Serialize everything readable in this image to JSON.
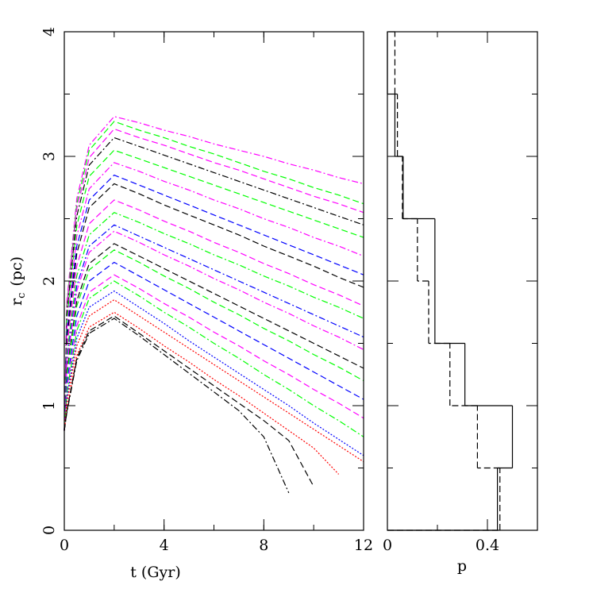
{
  "chart_data": [
    {
      "type": "line",
      "x_label": "t (Gyr)",
      "y_label": {
        "main": "r",
        "subscript": "c",
        "unit": "(pc)"
      },
      "xlim": [
        0,
        12
      ],
      "xticks": [
        0,
        4,
        8,
        12
      ],
      "ylim": [
        0,
        4
      ],
      "yticks": [
        0,
        1,
        2,
        3,
        4
      ],
      "x": [
        0,
        0.1,
        0.5,
        1,
        2,
        3,
        4,
        5,
        6,
        7,
        8,
        9,
        10,
        11,
        12
      ],
      "series": [
        {
          "color": "#ff00ff",
          "style": "dashdot",
          "values": [
            0.8,
            1.83,
            2.66,
            3.09,
            3.32,
            3.27,
            3.21,
            3.16,
            3.1,
            3.05,
            3.0,
            2.94,
            2.89,
            2.83,
            2.78
          ]
        },
        {
          "color": "#00ff00",
          "style": "dashed",
          "values": [
            0.8,
            1.8,
            2.62,
            3.05,
            3.28,
            3.21,
            3.15,
            3.08,
            3.02,
            2.95,
            2.88,
            2.82,
            2.75,
            2.69,
            2.62
          ]
        },
        {
          "color": "#ff00ff",
          "style": "dashed",
          "values": [
            0.8,
            1.77,
            2.58,
            2.99,
            3.22,
            3.15,
            3.09,
            3.02,
            2.95,
            2.89,
            2.82,
            2.75,
            2.68,
            2.62,
            2.55
          ]
        },
        {
          "color": "#000000",
          "style": "dashdot",
          "values": [
            0.8,
            1.73,
            2.52,
            2.93,
            3.15,
            3.08,
            3.01,
            2.94,
            2.87,
            2.8,
            2.73,
            2.66,
            2.59,
            2.52,
            2.45
          ]
        },
        {
          "color": "#00ff00",
          "style": "dashed",
          "values": [
            0.8,
            1.68,
            2.44,
            2.84,
            3.05,
            2.98,
            2.91,
            2.84,
            2.77,
            2.7,
            2.63,
            2.56,
            2.49,
            2.42,
            2.35
          ]
        },
        {
          "color": "#ff00ff",
          "style": "dashdot",
          "values": [
            0.8,
            1.62,
            2.36,
            2.74,
            2.95,
            2.88,
            2.8,
            2.73,
            2.65,
            2.58,
            2.5,
            2.43,
            2.35,
            2.28,
            2.2
          ]
        },
        {
          "color": "#0000ff",
          "style": "dashed",
          "values": [
            0.8,
            1.57,
            2.28,
            2.65,
            2.85,
            2.77,
            2.69,
            2.61,
            2.53,
            2.45,
            2.37,
            2.29,
            2.21,
            2.13,
            2.05
          ]
        },
        {
          "color": "#000000",
          "style": "dashed",
          "values": [
            0.8,
            1.53,
            2.22,
            2.59,
            2.78,
            2.7,
            2.61,
            2.53,
            2.45,
            2.37,
            2.28,
            2.2,
            2.12,
            2.03,
            1.95
          ]
        },
        {
          "color": "#ff00ff",
          "style": "dashed",
          "values": [
            0.8,
            1.46,
            2.12,
            2.46,
            2.65,
            2.57,
            2.48,
            2.4,
            2.31,
            2.23,
            2.14,
            2.06,
            1.97,
            1.89,
            1.8
          ]
        },
        {
          "color": "#00ff00",
          "style": "dashdot",
          "values": [
            0.8,
            1.4,
            2.04,
            2.37,
            2.55,
            2.47,
            2.38,
            2.3,
            2.21,
            2.13,
            2.04,
            1.96,
            1.87,
            1.79,
            1.7
          ]
        },
        {
          "color": "#0000ff",
          "style": "dashdot",
          "values": [
            0.8,
            1.35,
            1.96,
            2.28,
            2.45,
            2.36,
            2.27,
            2.18,
            2.09,
            2.0,
            1.91,
            1.82,
            1.73,
            1.64,
            1.55
          ]
        },
        {
          "color": "#ff00ff",
          "style": "dashdot",
          "values": [
            0.8,
            1.32,
            1.92,
            2.23,
            2.4,
            2.31,
            2.21,
            2.12,
            2.02,
            1.93,
            1.83,
            1.74,
            1.64,
            1.55,
            1.45
          ]
        },
        {
          "color": "#000000",
          "style": "dashed",
          "values": [
            0.8,
            1.27,
            1.84,
            2.14,
            2.3,
            2.2,
            2.1,
            2.0,
            1.9,
            1.8,
            1.7,
            1.6,
            1.5,
            1.4,
            1.3
          ]
        },
        {
          "color": "#00ff00",
          "style": "dashed",
          "values": [
            0.8,
            1.24,
            1.8,
            2.09,
            2.25,
            2.15,
            2.04,
            1.94,
            1.83,
            1.73,
            1.62,
            1.52,
            1.41,
            1.31,
            1.2
          ]
        },
        {
          "color": "#0000ff",
          "style": "dashed",
          "values": [
            0.8,
            1.18,
            1.72,
            2.0,
            2.15,
            2.04,
            1.93,
            1.82,
            1.71,
            1.6,
            1.49,
            1.38,
            1.27,
            1.16,
            1.05
          ]
        },
        {
          "color": "#ff00ff",
          "style": "dashed",
          "values": [
            0.8,
            1.13,
            1.64,
            1.91,
            2.05,
            1.94,
            1.82,
            1.71,
            1.59,
            1.48,
            1.36,
            1.25,
            1.13,
            1.02,
            0.9
          ]
        },
        {
          "color": "#00ff00",
          "style": "dashdot",
          "values": [
            0.8,
            1.1,
            1.6,
            1.86,
            2.0,
            1.88,
            1.75,
            1.63,
            1.5,
            1.38,
            1.25,
            1.13,
            1.0,
            0.88,
            0.75
          ]
        },
        {
          "color": "#0000ff",
          "style": "dotted",
          "values": [
            0.8,
            1.06,
            1.54,
            1.79,
            1.92,
            1.79,
            1.66,
            1.52,
            1.39,
            1.26,
            1.13,
            1.0,
            0.86,
            0.73,
            0.6
          ]
        },
        {
          "color": "#ff0000",
          "style": "dotted",
          "values": [
            0.8,
            1.02,
            1.48,
            1.72,
            1.85,
            1.72,
            1.59,
            1.46,
            1.33,
            1.2,
            1.07,
            0.94,
            0.81,
            0.68,
            0.55
          ]
        },
        {
          "color": "#ff0000",
          "style": "dotted",
          "values": [
            0.8,
            0.96,
            1.4,
            1.63,
            1.75,
            1.62,
            1.48,
            1.35,
            1.21,
            1.08,
            0.94,
            0.8,
            0.66,
            0.45,
            null
          ]
        },
        {
          "color": "#000000",
          "style": "dashdot",
          "values": [
            0.8,
            0.94,
            1.36,
            1.58,
            1.7,
            1.56,
            1.41,
            1.26,
            1.11,
            0.96,
            0.75,
            0.3,
            null,
            null,
            null
          ]
        },
        {
          "color": "#000000",
          "style": "dashed",
          "values": [
            0.8,
            0.95,
            1.38,
            1.6,
            1.72,
            1.58,
            1.44,
            1.3,
            1.16,
            1.02,
            0.88,
            0.72,
            0.35,
            null,
            null
          ]
        }
      ]
    },
    {
      "type": "histogram",
      "orientation": "horizontal",
      "x_label": "p",
      "xlim": [
        0,
        0.6
      ],
      "xticks": [
        0,
        0.4
      ],
      "ylim": [
        0,
        4
      ],
      "bins": [
        0,
        0.5,
        1,
        1.5,
        2,
        2.5,
        3,
        3.5,
        4
      ],
      "series": [
        {
          "color": "#000000",
          "style": "solid",
          "counts": [
            0.44,
            0.5,
            0.31,
            0.19,
            0.19,
            0.063,
            0.03,
            0
          ]
        },
        {
          "color": "#000000",
          "style": "dashed",
          "counts": [
            0.45,
            0.36,
            0.25,
            0.165,
            0.12,
            0.06,
            0.04,
            0.03
          ]
        }
      ]
    }
  ]
}
